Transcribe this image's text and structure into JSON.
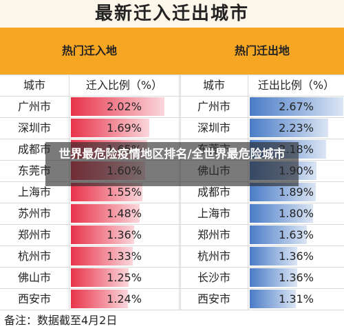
{
  "title": "最新迁入迁出城市",
  "overlay_text": "世界最危险疫情地区排名/全世界最危险城市",
  "watermark_text": "",
  "footnote": "备注：数据截至4月2日",
  "colors": {
    "header": "#f5a623",
    "in_bar": "#e8334a",
    "out_bar": "#4a7cc7"
  },
  "chart_data": [
    {
      "type": "table",
      "title": "热门迁入地",
      "column_headers": [
        "城市",
        "迁入比例（%）"
      ],
      "categories": [
        "广州市",
        "深圳市",
        "成都市",
        "东莞市",
        "上海市",
        "苏州市",
        "郑州市",
        "杭州市",
        "佛山市",
        "西安市"
      ],
      "value_labels": [
        "2.02%",
        "1.69%",
        "1.65%",
        "1.60%",
        "1.55%",
        "1.48%",
        "1.36%",
        "1.33%",
        "1.25%",
        "1.24%"
      ],
      "values": [
        2.02,
        1.69,
        1.65,
        1.6,
        1.55,
        1.48,
        1.36,
        1.33,
        1.25,
        1.24
      ],
      "unit": "%"
    },
    {
      "type": "table",
      "title": "热门迁出地",
      "column_headers": [
        "城市",
        "迁出比例（%）"
      ],
      "categories": [
        "广州市",
        "深圳市",
        "东莞市",
        "佛山市",
        "成都市",
        "上海市",
        "郑州市",
        "杭州市",
        "长沙市",
        "西安市"
      ],
      "value_labels": [
        "2.67%",
        "2.23%",
        "2.18%",
        "1.90%",
        "1.89%",
        "1.80%",
        "1.63%",
        "1.36%",
        "1.36%",
        "1.31%"
      ],
      "values": [
        2.67,
        2.23,
        2.18,
        1.9,
        1.89,
        1.8,
        1.63,
        1.36,
        1.36,
        1.31
      ],
      "unit": "%"
    }
  ]
}
